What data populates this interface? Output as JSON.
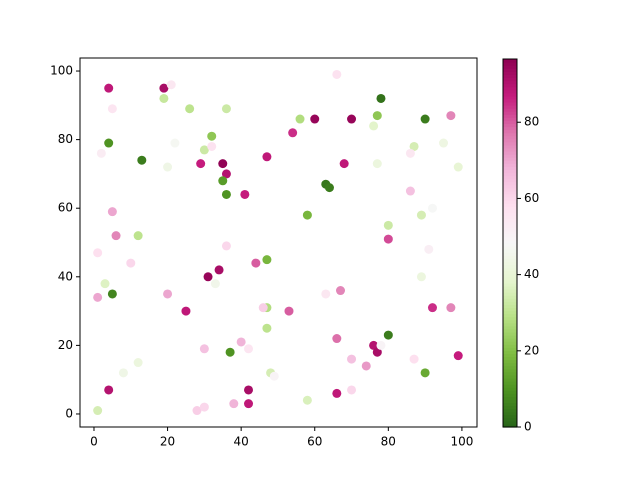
{
  "chart_data": {
    "type": "scatter",
    "x": [
      4,
      19,
      21,
      5,
      19,
      26,
      36,
      66,
      78,
      56,
      60,
      70,
      77,
      76,
      90,
      97,
      4,
      2,
      13,
      22,
      32,
      30,
      32,
      29,
      35,
      36,
      35,
      36,
      47,
      54,
      68,
      63,
      64,
      77,
      87,
      86,
      20,
      95,
      99,
      41,
      5,
      6,
      12,
      1,
      10,
      36,
      58,
      80,
      80,
      89,
      92,
      91,
      86,
      3,
      1,
      5,
      20,
      31,
      34,
      33,
      47,
      44,
      47,
      46,
      47,
      25,
      53,
      63,
      67,
      89,
      92,
      97,
      40,
      42,
      37,
      30,
      66,
      70,
      74,
      76,
      77,
      78,
      80,
      87,
      90,
      99,
      48,
      49,
      12,
      8,
      4,
      1,
      28,
      30,
      38,
      42,
      42,
      58,
      66,
      70
    ],
    "y": [
      95,
      95,
      96,
      89,
      92,
      89,
      89,
      99,
      92,
      86,
      86,
      86,
      87,
      84,
      86,
      87,
      79,
      76,
      74,
      79,
      81,
      77,
      78,
      73,
      73,
      70,
      68,
      64,
      75,
      82,
      73,
      67,
      66,
      73,
      78,
      76,
      72,
      79,
      72,
      64,
      59,
      52,
      52,
      47,
      44,
      49,
      58,
      55,
      51,
      58,
      60,
      48,
      65,
      38,
      34,
      35,
      35,
      40,
      42,
      38,
      45,
      44,
      31,
      31,
      25,
      30,
      30,
      35,
      36,
      40,
      31,
      31,
      21,
      19,
      18,
      19,
      22,
      16,
      14,
      20,
      18,
      20,
      23,
      16,
      12,
      17,
      12,
      11,
      15,
      12,
      7,
      1,
      1,
      2,
      3,
      7,
      3,
      4,
      6,
      7
    ],
    "c": [
      88,
      92,
      55,
      56,
      32,
      30,
      33,
      57,
      3,
      28,
      95,
      95,
      22,
      38,
      5,
      75,
      10,
      53,
      5,
      47,
      22,
      33,
      57,
      87,
      96,
      90,
      12,
      10,
      88,
      85,
      88,
      4,
      5,
      42,
      35,
      55,
      44,
      43,
      40,
      87,
      70,
      75,
      30,
      58,
      60,
      60,
      18,
      33,
      82,
      35,
      48,
      52,
      65,
      37,
      70,
      7,
      70,
      95,
      92,
      45,
      18,
      80,
      28,
      62,
      30,
      88,
      80,
      55,
      75,
      42,
      85,
      75,
      68,
      56,
      10,
      65,
      78,
      65,
      72,
      90,
      92,
      50,
      5,
      58,
      15,
      87,
      35,
      50,
      42,
      44,
      90,
      35,
      62,
      60,
      68,
      92,
      88,
      36,
      88,
      60
    ],
    "colormap": "PiYG_r",
    "xlim": [
      -3.8,
      104.1
    ],
    "ylim": [
      -3.8,
      103.8
    ],
    "xticks": [
      0,
      20,
      40,
      60,
      80,
      100
    ],
    "yticks": [
      0,
      20,
      40,
      60,
      80,
      100
    ],
    "clim": [
      0,
      96.6
    ],
    "cticks": [
      0,
      20,
      40,
      60,
      80
    ]
  }
}
